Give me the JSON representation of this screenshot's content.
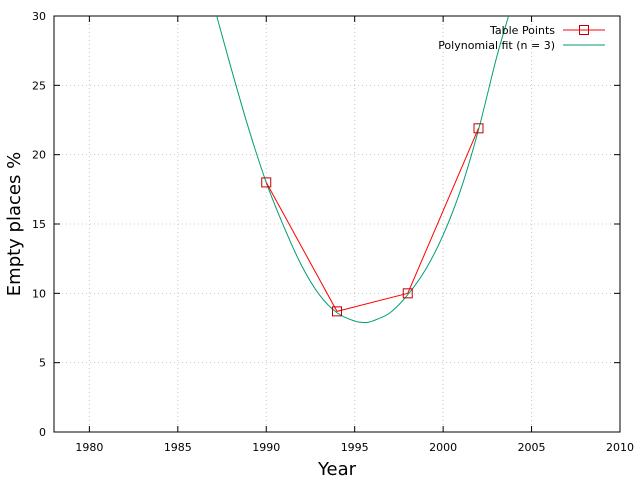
{
  "chart_data": {
    "type": "line",
    "xlabel": "Year",
    "ylabel": "Empty places %",
    "xlim": [
      1978,
      2010
    ],
    "ylim": [
      0,
      30
    ],
    "x_ticks": [
      1980,
      1985,
      1990,
      1995,
      2000,
      2005,
      2010
    ],
    "y_ticks": [
      0,
      5,
      10,
      15,
      20,
      25,
      30
    ],
    "grid": true,
    "legend_position": "top-right",
    "series": [
      {
        "name": "Table Points",
        "kind": "line-with-markers",
        "marker": "square",
        "color": "#ff0000",
        "x": [
          1990,
          1994,
          1998,
          2002
        ],
        "y": [
          18,
          8.7,
          10,
          21.9
        ]
      },
      {
        "name": "Polynomial fit (n = 3)",
        "kind": "line",
        "color": "#009e73",
        "x": [
          1987.2,
          1988,
          1989,
          1990,
          1991,
          1992,
          1993,
          1994,
          1995,
          1995.6,
          1996,
          1997,
          1998,
          1999,
          2000,
          2001,
          2002,
          2003,
          2003.7
        ],
        "y": [
          30,
          26.3,
          21.9,
          18.0,
          14.8,
          12.0,
          9.9,
          8.6,
          8.0,
          7.9,
          8.0,
          8.6,
          9.9,
          11.7,
          14.2,
          17.5,
          21.8,
          26.9,
          30
        ]
      }
    ]
  }
}
